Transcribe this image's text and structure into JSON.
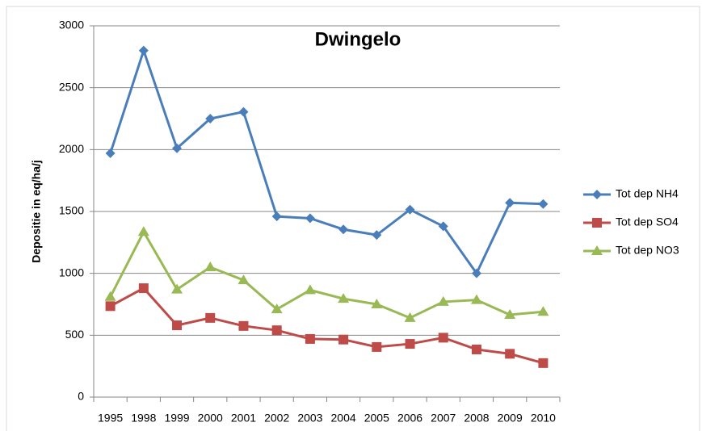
{
  "chart_data": {
    "type": "line",
    "title": "Dwingelo",
    "y_label": "Depositie in eq/ha/j",
    "categories": [
      "1995",
      "1998",
      "1999",
      "2000",
      "2001",
      "2002",
      "2003",
      "2004",
      "2005",
      "2006",
      "2007",
      "2008",
      "2009",
      "2010"
    ],
    "series": [
      {
        "name": "Tot dep NH4",
        "color": "#4a7ebb",
        "marker": "diamond",
        "values": [
          1970,
          2800,
          2010,
          2250,
          2305,
          1460,
          1445,
          1355,
          1310,
          1515,
          1380,
          1000,
          1570,
          1560
        ]
      },
      {
        "name": "Tot dep SO4",
        "color": "#be4b48",
        "marker": "square",
        "values": [
          735,
          880,
          580,
          640,
          575,
          540,
          470,
          465,
          405,
          430,
          480,
          385,
          350,
          275
        ]
      },
      {
        "name": "Tot dep NO3",
        "color": "#98b954",
        "marker": "triangle",
        "values": [
          810,
          1335,
          870,
          1050,
          945,
          710,
          865,
          795,
          750,
          640,
          770,
          785,
          665,
          690
        ]
      }
    ],
    "ylim": [
      0,
      3000
    ],
    "yticks": [
      0,
      500,
      1000,
      1500,
      2000,
      2500,
      3000
    ],
    "grid": true,
    "legend": "right"
  }
}
